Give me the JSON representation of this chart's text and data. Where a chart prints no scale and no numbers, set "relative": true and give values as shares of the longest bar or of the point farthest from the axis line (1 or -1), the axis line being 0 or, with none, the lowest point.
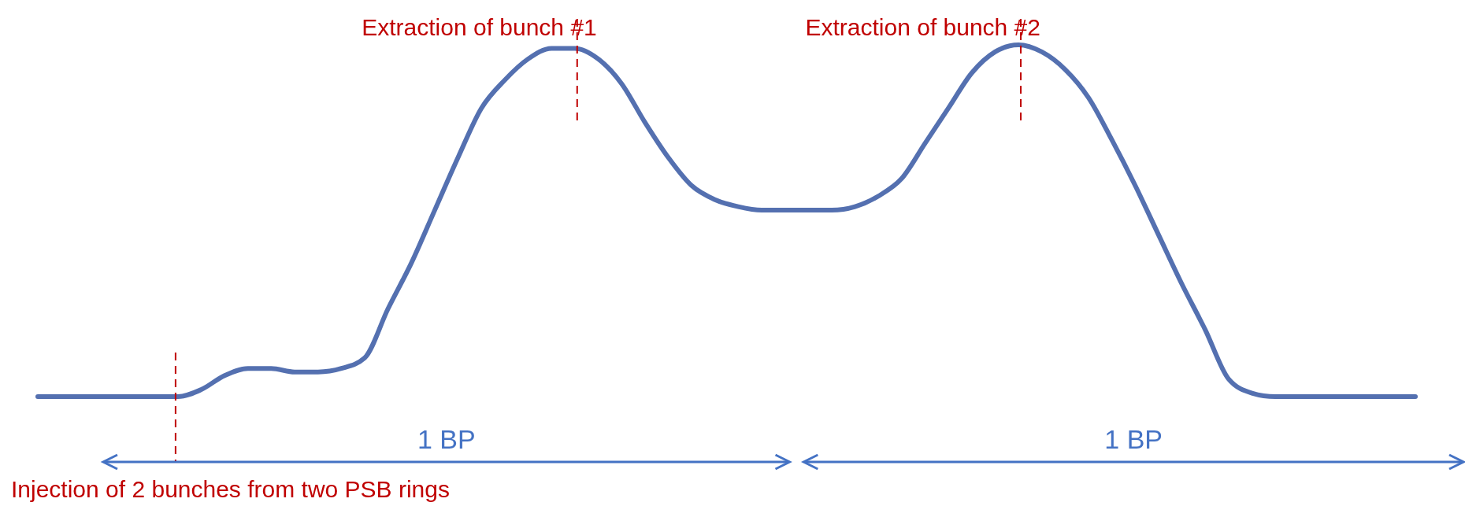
{
  "chart_data": {
    "type": "line",
    "relative": true,
    "categories": [
      null,
      null,
      null,
      null,
      null,
      null,
      null,
      null,
      null,
      null,
      null,
      null,
      null,
      null,
      null,
      null,
      null,
      null,
      null,
      null,
      null,
      null,
      null,
      null,
      null,
      null,
      null,
      null,
      null,
      null,
      null,
      null,
      null,
      null,
      null,
      null,
      null,
      null,
      null,
      null,
      null,
      null,
      null,
      null,
      null,
      null,
      null,
      null,
      null,
      null,
      null,
      null,
      null,
      null,
      null,
      null,
      null,
      null,
      null,
      null
    ],
    "series": [
      {
        "color": "#5470b0",
        "values": [
          0,
          0,
          0,
          0,
          0,
          0,
          0,
          0.02,
          0.06,
          0.08,
          0.08,
          0.07,
          0.07,
          0.08,
          0.11,
          0.25,
          0.38,
          0.53,
          0.68,
          0.82,
          0.9,
          0.96,
          0.99,
          0.99,
          0.96,
          0.89,
          0.78,
          0.68,
          0.6,
          0.56,
          0.54,
          0.53,
          0.53,
          0.53,
          0.53,
          0.54,
          0.57,
          0.62,
          0.72,
          0.82,
          0.92,
          0.98,
          1,
          0.98,
          0.93,
          0.85,
          0.73,
          0.6,
          0.46,
          0.32,
          0.19,
          0.05,
          0.01,
          0,
          0,
          0,
          0,
          0,
          0,
          0
        ]
      }
    ],
    "line_style": "solid",
    "annotations": [
      "Injection of 2 bunches from two PSB rings",
      "Extraction of bunch #1",
      "Extraction of bunch #2",
      "1 BP",
      "1 BP"
    ]
  }
}
